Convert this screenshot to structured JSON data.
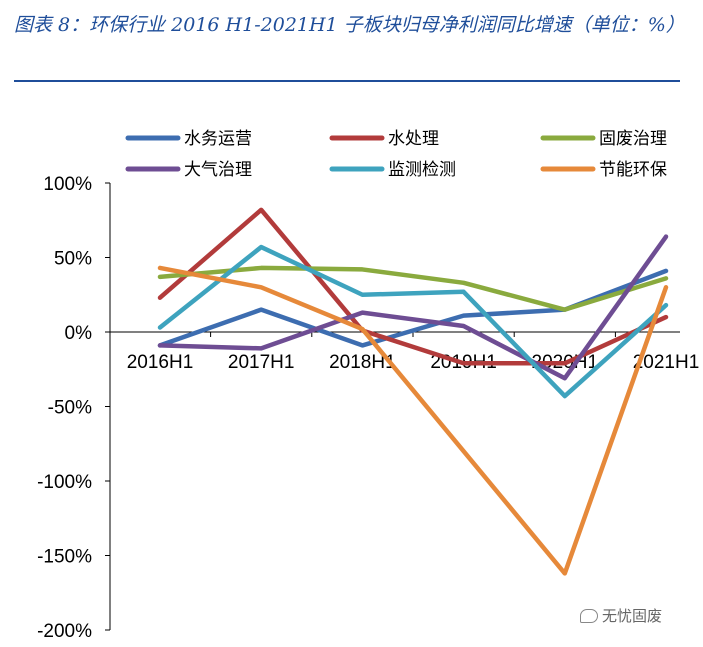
{
  "title": "图表 8：环保行业 2016 H1-2021H1 子板块归母净利润同比增速（单位：%）",
  "watermark": "无忧固废",
  "chart_data": {
    "type": "line",
    "x": [
      "2016H1",
      "2017H1",
      "2018H1",
      "2019H1",
      "2020H1",
      "2021H1"
    ],
    "ylim": [
      -200,
      100
    ],
    "yticks": [
      100,
      50,
      0,
      -50,
      -100,
      -150,
      -200
    ],
    "ytick_labels": [
      "100%",
      "50%",
      "0%",
      "-50%",
      "-100%",
      "-150%",
      "-200%"
    ],
    "legend_position": "top",
    "series": [
      {
        "name": "水务运营",
        "color": "#3d6db0",
        "values": [
          -9,
          15,
          -9,
          11,
          15,
          41
        ]
      },
      {
        "name": "水处理",
        "color": "#b23b3b",
        "values": [
          23,
          82,
          1,
          -21,
          -21,
          10
        ]
      },
      {
        "name": "固废治理",
        "color": "#8aaa3e",
        "values": [
          37,
          43,
          42,
          33,
          15,
          36
        ]
      },
      {
        "name": "大气治理",
        "color": "#6e4d93",
        "values": [
          -9,
          -11,
          13,
          4,
          -31,
          64
        ]
      },
      {
        "name": "监测检测",
        "color": "#3ea3be",
        "values": [
          3,
          57,
          25,
          27,
          -43,
          18
        ]
      },
      {
        "name": "节能环保",
        "color": "#e6893a",
        "values": [
          43,
          30,
          2,
          -80,
          -162,
          30
        ]
      }
    ]
  }
}
